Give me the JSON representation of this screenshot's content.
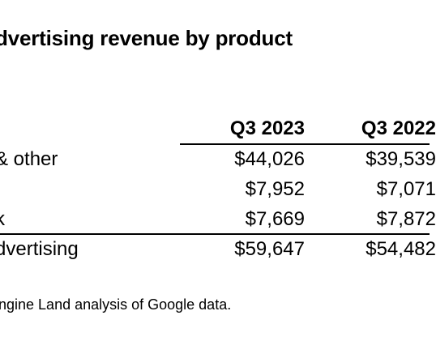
{
  "title": "dvertising revenue by product",
  "table": {
    "columns": [
      "Q3 2023",
      "Q3 2022"
    ],
    "rows": [
      {
        "label": " & other",
        "values": [
          "$44,026",
          "$39,539"
        ]
      },
      {
        "label": "",
        "values": [
          "$7,952",
          "$7,071"
        ]
      },
      {
        "label": "k",
        "values": [
          "$7,669",
          "$7,872"
        ]
      },
      {
        "label": "dvertising",
        "values": [
          "$59,647",
          "$54,482"
        ]
      }
    ]
  },
  "note": "ngine Land analysis of Google data."
}
